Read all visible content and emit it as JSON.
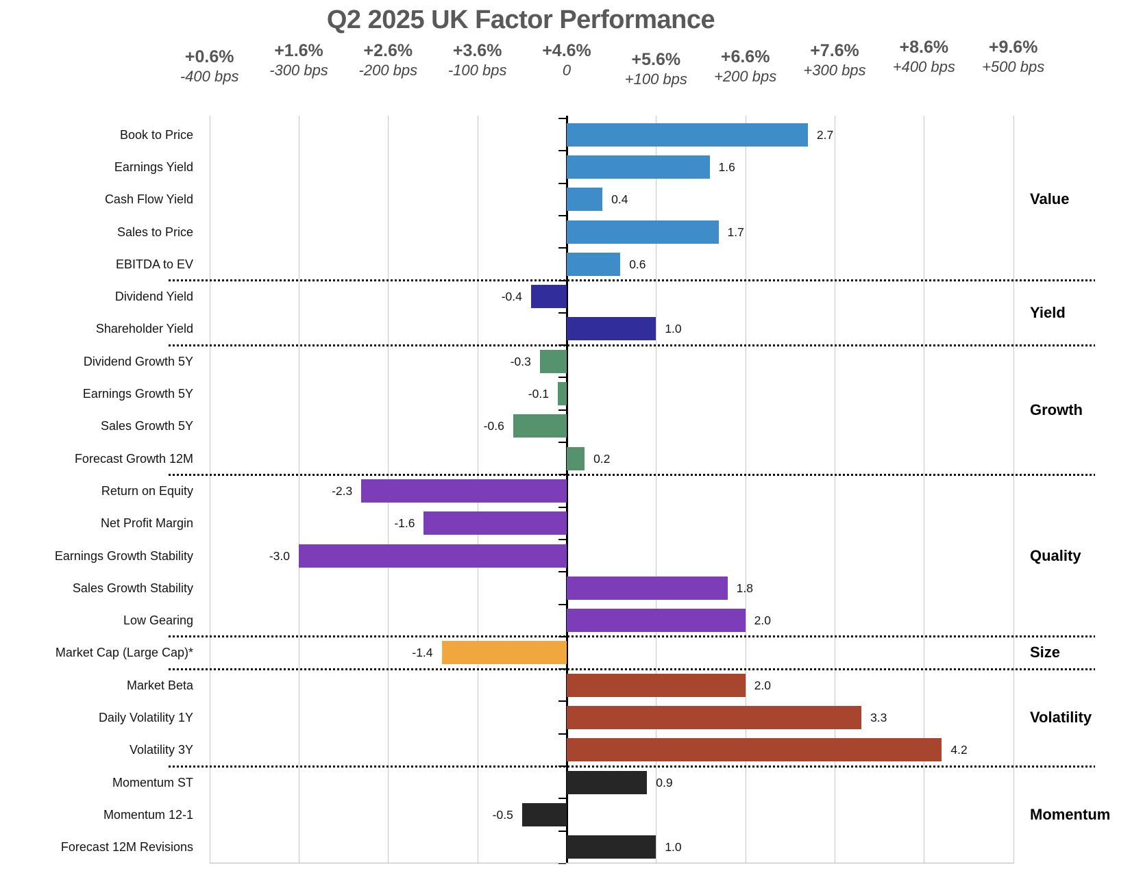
{
  "title": "Q2 2025 UK Factor Performance",
  "chart_data": {
    "type": "bar",
    "orientation": "horizontal",
    "title": "Q2 2025 UK Factor Performance",
    "unit": "percent (top label) / basis points relative to benchmark (italic label)",
    "x_axis": {
      "range_bps": [
        -400,
        500
      ],
      "grid": true,
      "ticks": [
        {
          "pct": "+0.6%",
          "bps": "-400 bps",
          "value": -4
        },
        {
          "pct": "+1.6%",
          "bps": "-300 bps",
          "value": -3
        },
        {
          "pct": "+2.6%",
          "bps": "-200 bps",
          "value": -2
        },
        {
          "pct": "+3.6%",
          "bps": "-100 bps",
          "value": -1
        },
        {
          "pct": "+4.6%",
          "bps": "0",
          "value": 0
        },
        {
          "pct": "+5.6%",
          "bps": "+100 bps",
          "value": 1
        },
        {
          "pct": "+6.6%",
          "bps": "+200 bps",
          "value": 2
        },
        {
          "pct": "+7.6%",
          "bps": "+300 bps",
          "value": 3
        },
        {
          "pct": "+8.6%",
          "bps": "+400 bps",
          "value": 4
        },
        {
          "pct": "+9.6%",
          "bps": "+500 bps",
          "value": 5
        }
      ]
    },
    "sections": [
      {
        "name": "Value",
        "color": "#3e8cc8",
        "rows": [
          {
            "label": "Book to Price",
            "value": 2.7
          },
          {
            "label": "Earnings Yield",
            "value": 1.6
          },
          {
            "label": "Cash Flow Yield",
            "value": 0.4
          },
          {
            "label": "Sales to Price",
            "value": 1.7
          },
          {
            "label": "EBITDA to EV",
            "value": 0.6
          }
        ]
      },
      {
        "name": "Yield",
        "color": "#312e9b",
        "rows": [
          {
            "label": "Dividend Yield",
            "value": -0.4
          },
          {
            "label": "Shareholder Yield",
            "value": 1.0
          }
        ]
      },
      {
        "name": "Growth",
        "color": "#55926e",
        "rows": [
          {
            "label": "Dividend Growth 5Y",
            "value": -0.3
          },
          {
            "label": "Earnings Growth 5Y",
            "value": -0.1
          },
          {
            "label": "Sales Growth 5Y",
            "value": -0.6
          },
          {
            "label": "Forecast Growth 12M",
            "value": 0.2
          }
        ]
      },
      {
        "name": "Quality",
        "color": "#7d3cb8",
        "rows": [
          {
            "label": "Return on Equity",
            "value": -2.3
          },
          {
            "label": "Net Profit Margin",
            "value": -1.6
          },
          {
            "label": "Earnings Growth Stability",
            "value": -3.0
          },
          {
            "label": "Sales Growth Stability",
            "value": 1.8
          },
          {
            "label": "Low Gearing",
            "value": 2.0
          }
        ]
      },
      {
        "name": "Size",
        "color": "#f0a73e",
        "rows": [
          {
            "label": "Market Cap (Large Cap)*",
            "value": -1.4
          }
        ]
      },
      {
        "name": "Volatility",
        "color": "#a8452f",
        "rows": [
          {
            "label": "Market Beta",
            "value": 2.0
          },
          {
            "label": "Daily Volatility 1Y",
            "value": 3.3
          },
          {
            "label": "Volatility 3Y",
            "value": 4.2
          }
        ]
      },
      {
        "name": "Momentum",
        "color": "#262626",
        "rows": [
          {
            "label": "Momentum ST",
            "value": 0.9
          },
          {
            "label": "Momentum 12-1",
            "value": -0.5
          },
          {
            "label": "Forecast 12M Revisions",
            "value": 1.0
          }
        ]
      }
    ]
  }
}
